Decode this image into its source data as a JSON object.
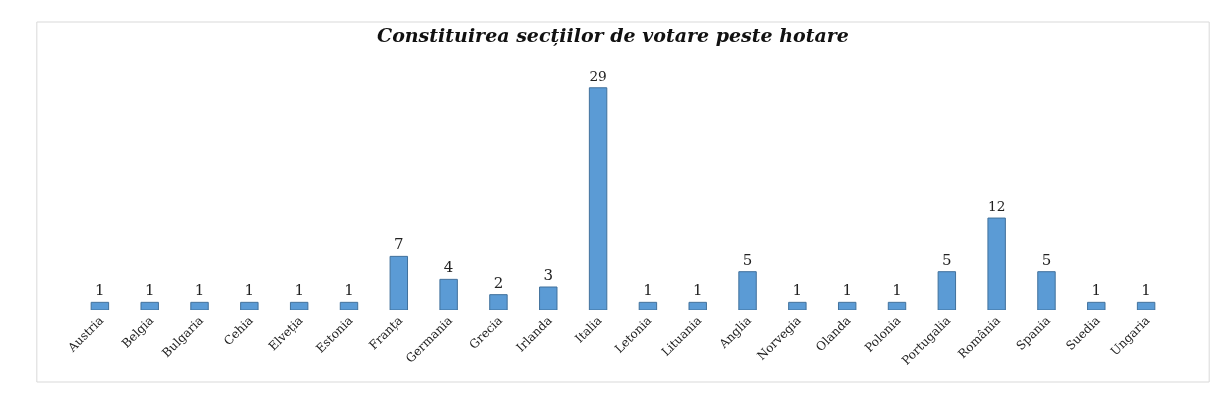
{
  "chart_data": {
    "type": "bar",
    "title": "Constituirea secțiilor de votare peste hotare",
    "categories": [
      "Austria",
      "Belgia",
      "Bulgaria",
      "Cehia",
      "Elveția",
      "Estonia",
      "Franța",
      "Germania",
      "Grecia",
      "Irlanda",
      "Italia",
      "Letonia",
      "Lituania",
      "Anglia",
      "Norvegia",
      "Olanda",
      "Polonia",
      "Portugalia",
      "România",
      "Spania",
      "Suedia",
      "Ungaria"
    ],
    "values": [
      1,
      1,
      1,
      1,
      1,
      1,
      7,
      4,
      2,
      3,
      29,
      1,
      1,
      5,
      1,
      1,
      1,
      5,
      12,
      5,
      1,
      1
    ],
    "color": "#5b9bd5",
    "data_labels": true,
    "tick_labels": "x"
  }
}
